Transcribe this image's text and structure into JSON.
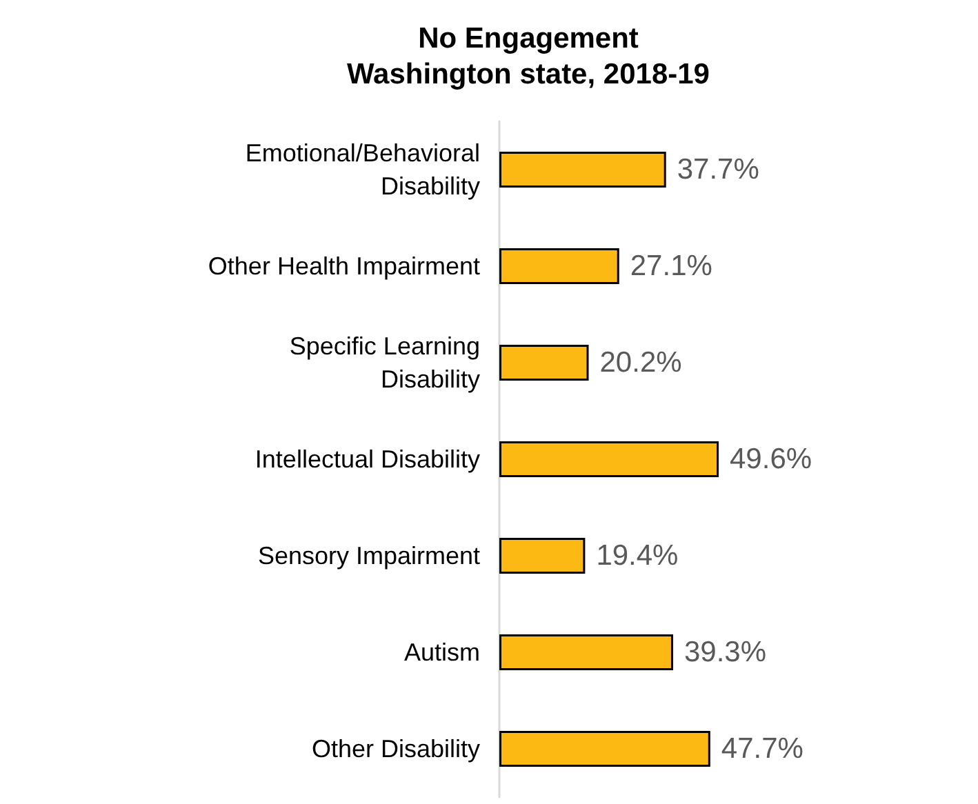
{
  "chart_data": {
    "type": "bar",
    "orientation": "horizontal",
    "title": "No Engagement\nWashington state, 2018-19",
    "categories": [
      "Emotional/Behavioral\nDisability",
      "Other Health Impairment",
      "Specific Learning\nDisability",
      "Intellectual Disability",
      "Sensory Impairment",
      "Autism",
      "Other Disability"
    ],
    "values": [
      37.7,
      27.1,
      20.2,
      49.6,
      19.4,
      39.3,
      47.7
    ],
    "value_labels": [
      "37.7%",
      "27.1%",
      "20.2%",
      "49.6%",
      "19.4%",
      "39.3%",
      "47.7%"
    ],
    "color": "#fdb913"
  }
}
